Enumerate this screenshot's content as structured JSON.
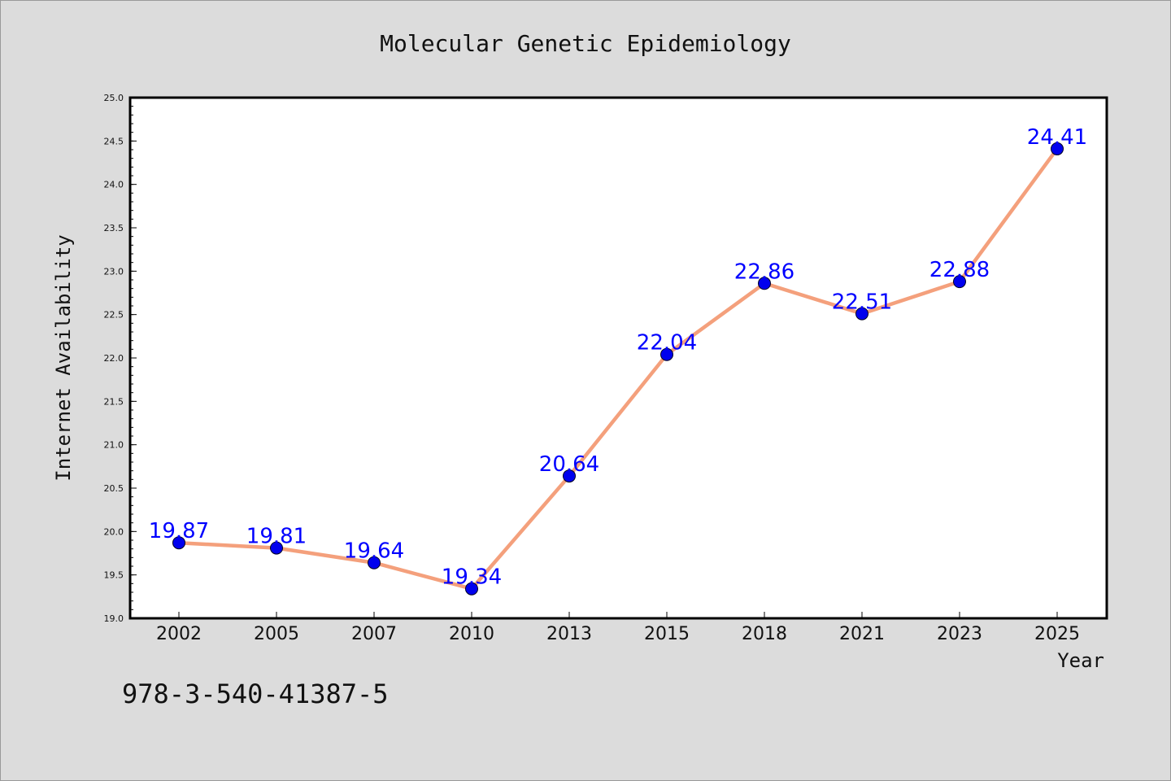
{
  "chart_data": {
    "type": "line",
    "title": "Molecular Genetic Epidemiology",
    "xlabel": "Year",
    "ylabel": "Internet Availability",
    "categories": [
      "2002",
      "2005",
      "2007",
      "2010",
      "2013",
      "2015",
      "2018",
      "2021",
      "2023",
      "2025"
    ],
    "series": [
      {
        "values": [
          19.87,
          19.81,
          19.64,
          19.34,
          20.64,
          22.04,
          22.86,
          22.51,
          22.88,
          24.41
        ]
      }
    ],
    "data_labels": [
      "19.87",
      "19.81",
      "19.64",
      "19.34",
      "20.64",
      "22.04",
      "22.86",
      "22.51",
      "22.88",
      "24.41"
    ],
    "ylim": [
      19.0,
      25.0
    ],
    "yticks": [
      "19.0",
      "19.5",
      "20.0",
      "20.5",
      "21.0",
      "21.5",
      "22.0",
      "22.5",
      "23.0",
      "23.5",
      "24.0",
      "24.5",
      "25.0"
    ],
    "grid": false,
    "line_color": "#f4a07c",
    "marker_color": "#0000ee",
    "label_color": "#0000ff"
  },
  "footnote": "978-3-540-41387-5"
}
